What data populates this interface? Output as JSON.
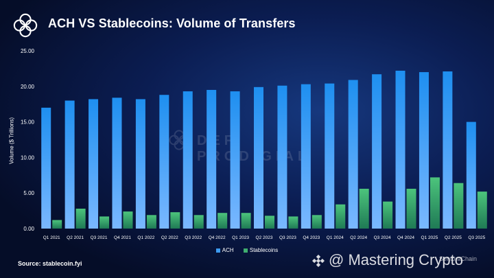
{
  "header": {
    "title": "ACH VS Stablecoins: Volume of Transfers"
  },
  "footer": {
    "source": "Source: stablecoin.fyi",
    "watermark": "@ Mastering Crypto",
    "watermark_small": "SentoraChain"
  },
  "center_watermark": "DEFI PRODIGIAL",
  "colors": {
    "ach": "#3d9bf0",
    "stablecoins": "#3fae6f",
    "background": "#0b1d52"
  },
  "chart_data": {
    "type": "bar",
    "title": "ACH VS Stablecoins: Volume of Transfers",
    "xlabel": "",
    "ylabel": "Volume ($ Trillions)",
    "ylim": [
      0,
      25
    ],
    "yticks": [
      "0.00",
      "5.00",
      "10.00",
      "15.00",
      "20.00",
      "25.00"
    ],
    "grid": false,
    "legend": "bottom-center",
    "categories": [
      "Q1 2021",
      "Q2 2021",
      "Q3 2021",
      "Q4 2021",
      "Q1 2022",
      "Q2 2022",
      "Q3 2022",
      "Q4 2022",
      "Q1 2023",
      "Q2 2023",
      "Q3 2023",
      "Q4 2023",
      "Q1 2024",
      "Q2 2024",
      "Q3 2024",
      "Q4 2024",
      "Q1 2025",
      "Q2 2025",
      "Q3 2025"
    ],
    "series": [
      {
        "name": "ACH",
        "values": [
          17.0,
          18.0,
          18.2,
          18.4,
          18.2,
          18.8,
          19.3,
          19.5,
          19.3,
          19.9,
          20.1,
          20.3,
          20.4,
          20.9,
          21.7,
          22.2,
          22.0,
          22.1,
          15.0
        ]
      },
      {
        "name": "Stablecoins",
        "values": [
          1.2,
          2.8,
          1.7,
          2.4,
          1.9,
          2.3,
          1.9,
          2.2,
          2.2,
          1.8,
          1.7,
          1.9,
          3.4,
          5.6,
          3.8,
          5.6,
          7.2,
          6.4,
          5.2
        ]
      }
    ]
  }
}
